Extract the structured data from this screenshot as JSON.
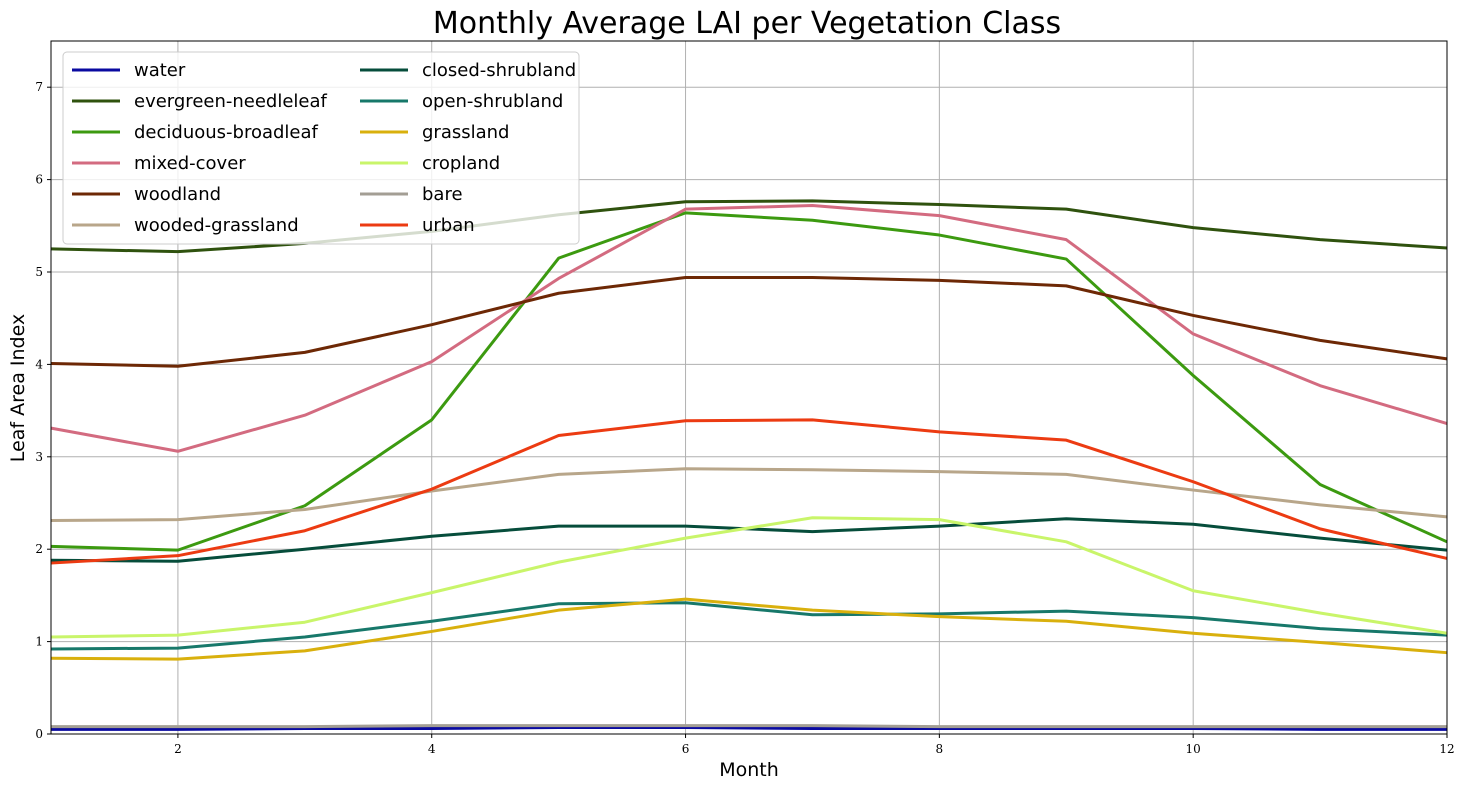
{
  "chart_data": {
    "type": "line",
    "title": "Monthly Average LAI per Vegetation Class",
    "xlabel": "Month",
    "ylabel": "Leaf Area Index",
    "xlim": [
      1,
      12
    ],
    "ylim": [
      0,
      7.5
    ],
    "xticks": [
      2,
      4,
      6,
      8,
      10,
      12
    ],
    "yticks": [
      0,
      1,
      2,
      3,
      4,
      5,
      6,
      7
    ],
    "grid": true,
    "legend_position": "top-left",
    "legend_columns": 2,
    "x": [
      1,
      2,
      3,
      4,
      5,
      6,
      7,
      8,
      9,
      10,
      11,
      12
    ],
    "series": [
      {
        "name": "water",
        "color": "#0a0aa0",
        "values": [
          0.05,
          0.05,
          0.06,
          0.06,
          0.07,
          0.07,
          0.06,
          0.06,
          0.06,
          0.06,
          0.05,
          0.05
        ]
      },
      {
        "name": "evergreen-needleleaf",
        "color": "#2f520e",
        "values": [
          5.25,
          5.22,
          5.31,
          5.44,
          5.62,
          5.76,
          5.77,
          5.73,
          5.68,
          5.48,
          5.35,
          5.26
        ]
      },
      {
        "name": "deciduous-broadleaf",
        "color": "#3c9a10",
        "values": [
          2.03,
          1.99,
          2.47,
          3.4,
          5.15,
          5.64,
          5.56,
          5.4,
          5.14,
          3.88,
          2.7,
          2.08
        ]
      },
      {
        "name": "mixed-cover",
        "color": "#d36b80",
        "values": [
          3.31,
          3.06,
          3.45,
          4.03,
          4.93,
          5.68,
          5.72,
          5.61,
          5.35,
          4.33,
          3.77,
          3.36
        ]
      },
      {
        "name": "woodland",
        "color": "#6d2805",
        "values": [
          4.01,
          3.98,
          4.13,
          4.43,
          4.77,
          4.94,
          4.94,
          4.91,
          4.85,
          4.53,
          4.26,
          4.06
        ]
      },
      {
        "name": "wooded-grassland",
        "color": "#b8a68a",
        "values": [
          2.31,
          2.32,
          2.43,
          2.63,
          2.81,
          2.87,
          2.86,
          2.84,
          2.81,
          2.64,
          2.48,
          2.35
        ]
      },
      {
        "name": "closed-shrubland",
        "color": "#064d3b",
        "values": [
          1.88,
          1.87,
          2.0,
          2.14,
          2.25,
          2.25,
          2.19,
          2.25,
          2.33,
          2.27,
          2.12,
          1.99
        ]
      },
      {
        "name": "open-shrubland",
        "color": "#17786a",
        "values": [
          0.92,
          0.93,
          1.05,
          1.22,
          1.41,
          1.42,
          1.29,
          1.3,
          1.33,
          1.26,
          1.14,
          1.07
        ]
      },
      {
        "name": "grassland",
        "color": "#d9b00d",
        "values": [
          0.82,
          0.81,
          0.9,
          1.11,
          1.34,
          1.46,
          1.34,
          1.27,
          1.22,
          1.09,
          0.99,
          0.88
        ]
      },
      {
        "name": "cropland",
        "color": "#c9f56a",
        "values": [
          1.05,
          1.07,
          1.21,
          1.53,
          1.86,
          2.12,
          2.34,
          2.32,
          2.08,
          1.55,
          1.31,
          1.09
        ]
      },
      {
        "name": "bare",
        "color": "#a39e94",
        "values": [
          0.08,
          0.08,
          0.08,
          0.09,
          0.09,
          0.09,
          0.09,
          0.08,
          0.08,
          0.08,
          0.08,
          0.08
        ]
      },
      {
        "name": "urban",
        "color": "#ec3b12",
        "values": [
          1.85,
          1.93,
          2.2,
          2.65,
          3.23,
          3.39,
          3.4,
          3.27,
          3.18,
          2.73,
          2.22,
          1.9
        ]
      }
    ]
  }
}
